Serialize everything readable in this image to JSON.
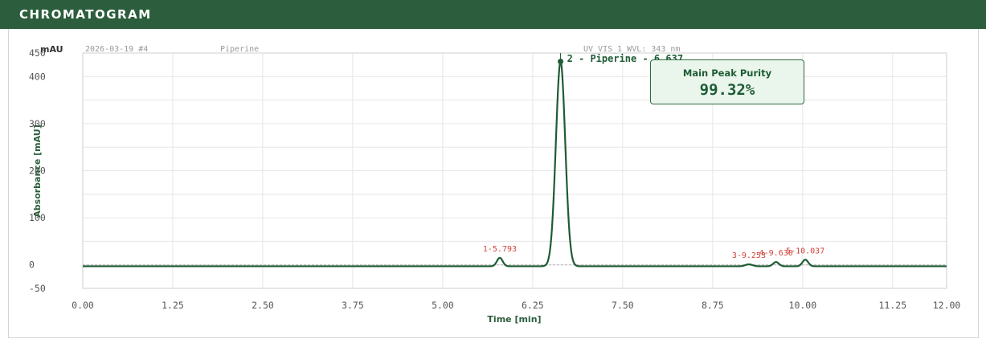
{
  "header": {
    "title": "CHROMATOGRAM"
  },
  "colors": {
    "header_bg": "#2c5e3d",
    "trace": "#1e5c34",
    "minor_peak_label": "#d0443a",
    "grid": "#e6e6e6"
  },
  "meta": {
    "unit": "mAU",
    "sample_id": "2026-03-19 #4",
    "sample_name": "Piperine",
    "detector": "UV_VIS_1 WVL: 343 nm"
  },
  "purity": {
    "label": "Main Peak Purity",
    "value": "99.32%"
  },
  "chart_data": {
    "type": "line",
    "xlabel": "Time [min]",
    "ylabel": "Absorbance [mAU]",
    "xlim": [
      0,
      12
    ],
    "ylim": [
      -50,
      450
    ],
    "x_ticks": [
      "0.00",
      "1.25",
      "2.50",
      "3.75",
      "5.00",
      "6.25",
      "7.50",
      "8.75",
      "10.00",
      "11.25",
      "12.00"
    ],
    "x_tick_values": [
      0,
      1.25,
      2.5,
      3.75,
      5.0,
      6.25,
      7.5,
      8.75,
      10.0,
      11.25,
      12.0
    ],
    "y_ticks": [
      "450",
      "400",
      "300",
      "200",
      "100",
      "0",
      "-50"
    ],
    "y_tick_values": [
      450,
      400,
      300,
      200,
      100,
      0,
      -50
    ],
    "baseline": -3,
    "peaks": [
      {
        "label": "1-5.793",
        "rt": 5.793,
        "height": 18,
        "sigma": 0.04,
        "main": false
      },
      {
        "label": "2 - Piperine - 6.637",
        "rt": 6.637,
        "height": 435,
        "sigma": 0.065,
        "main": true
      },
      {
        "label": "3-9.253",
        "rt": 9.253,
        "height": 4,
        "sigma": 0.05,
        "main": false
      },
      {
        "label": "4-9.630",
        "rt": 9.63,
        "height": 9,
        "sigma": 0.04,
        "main": false
      },
      {
        "label": "5-10.037",
        "rt": 10.037,
        "height": 14,
        "sigma": 0.04,
        "main": false
      }
    ]
  }
}
